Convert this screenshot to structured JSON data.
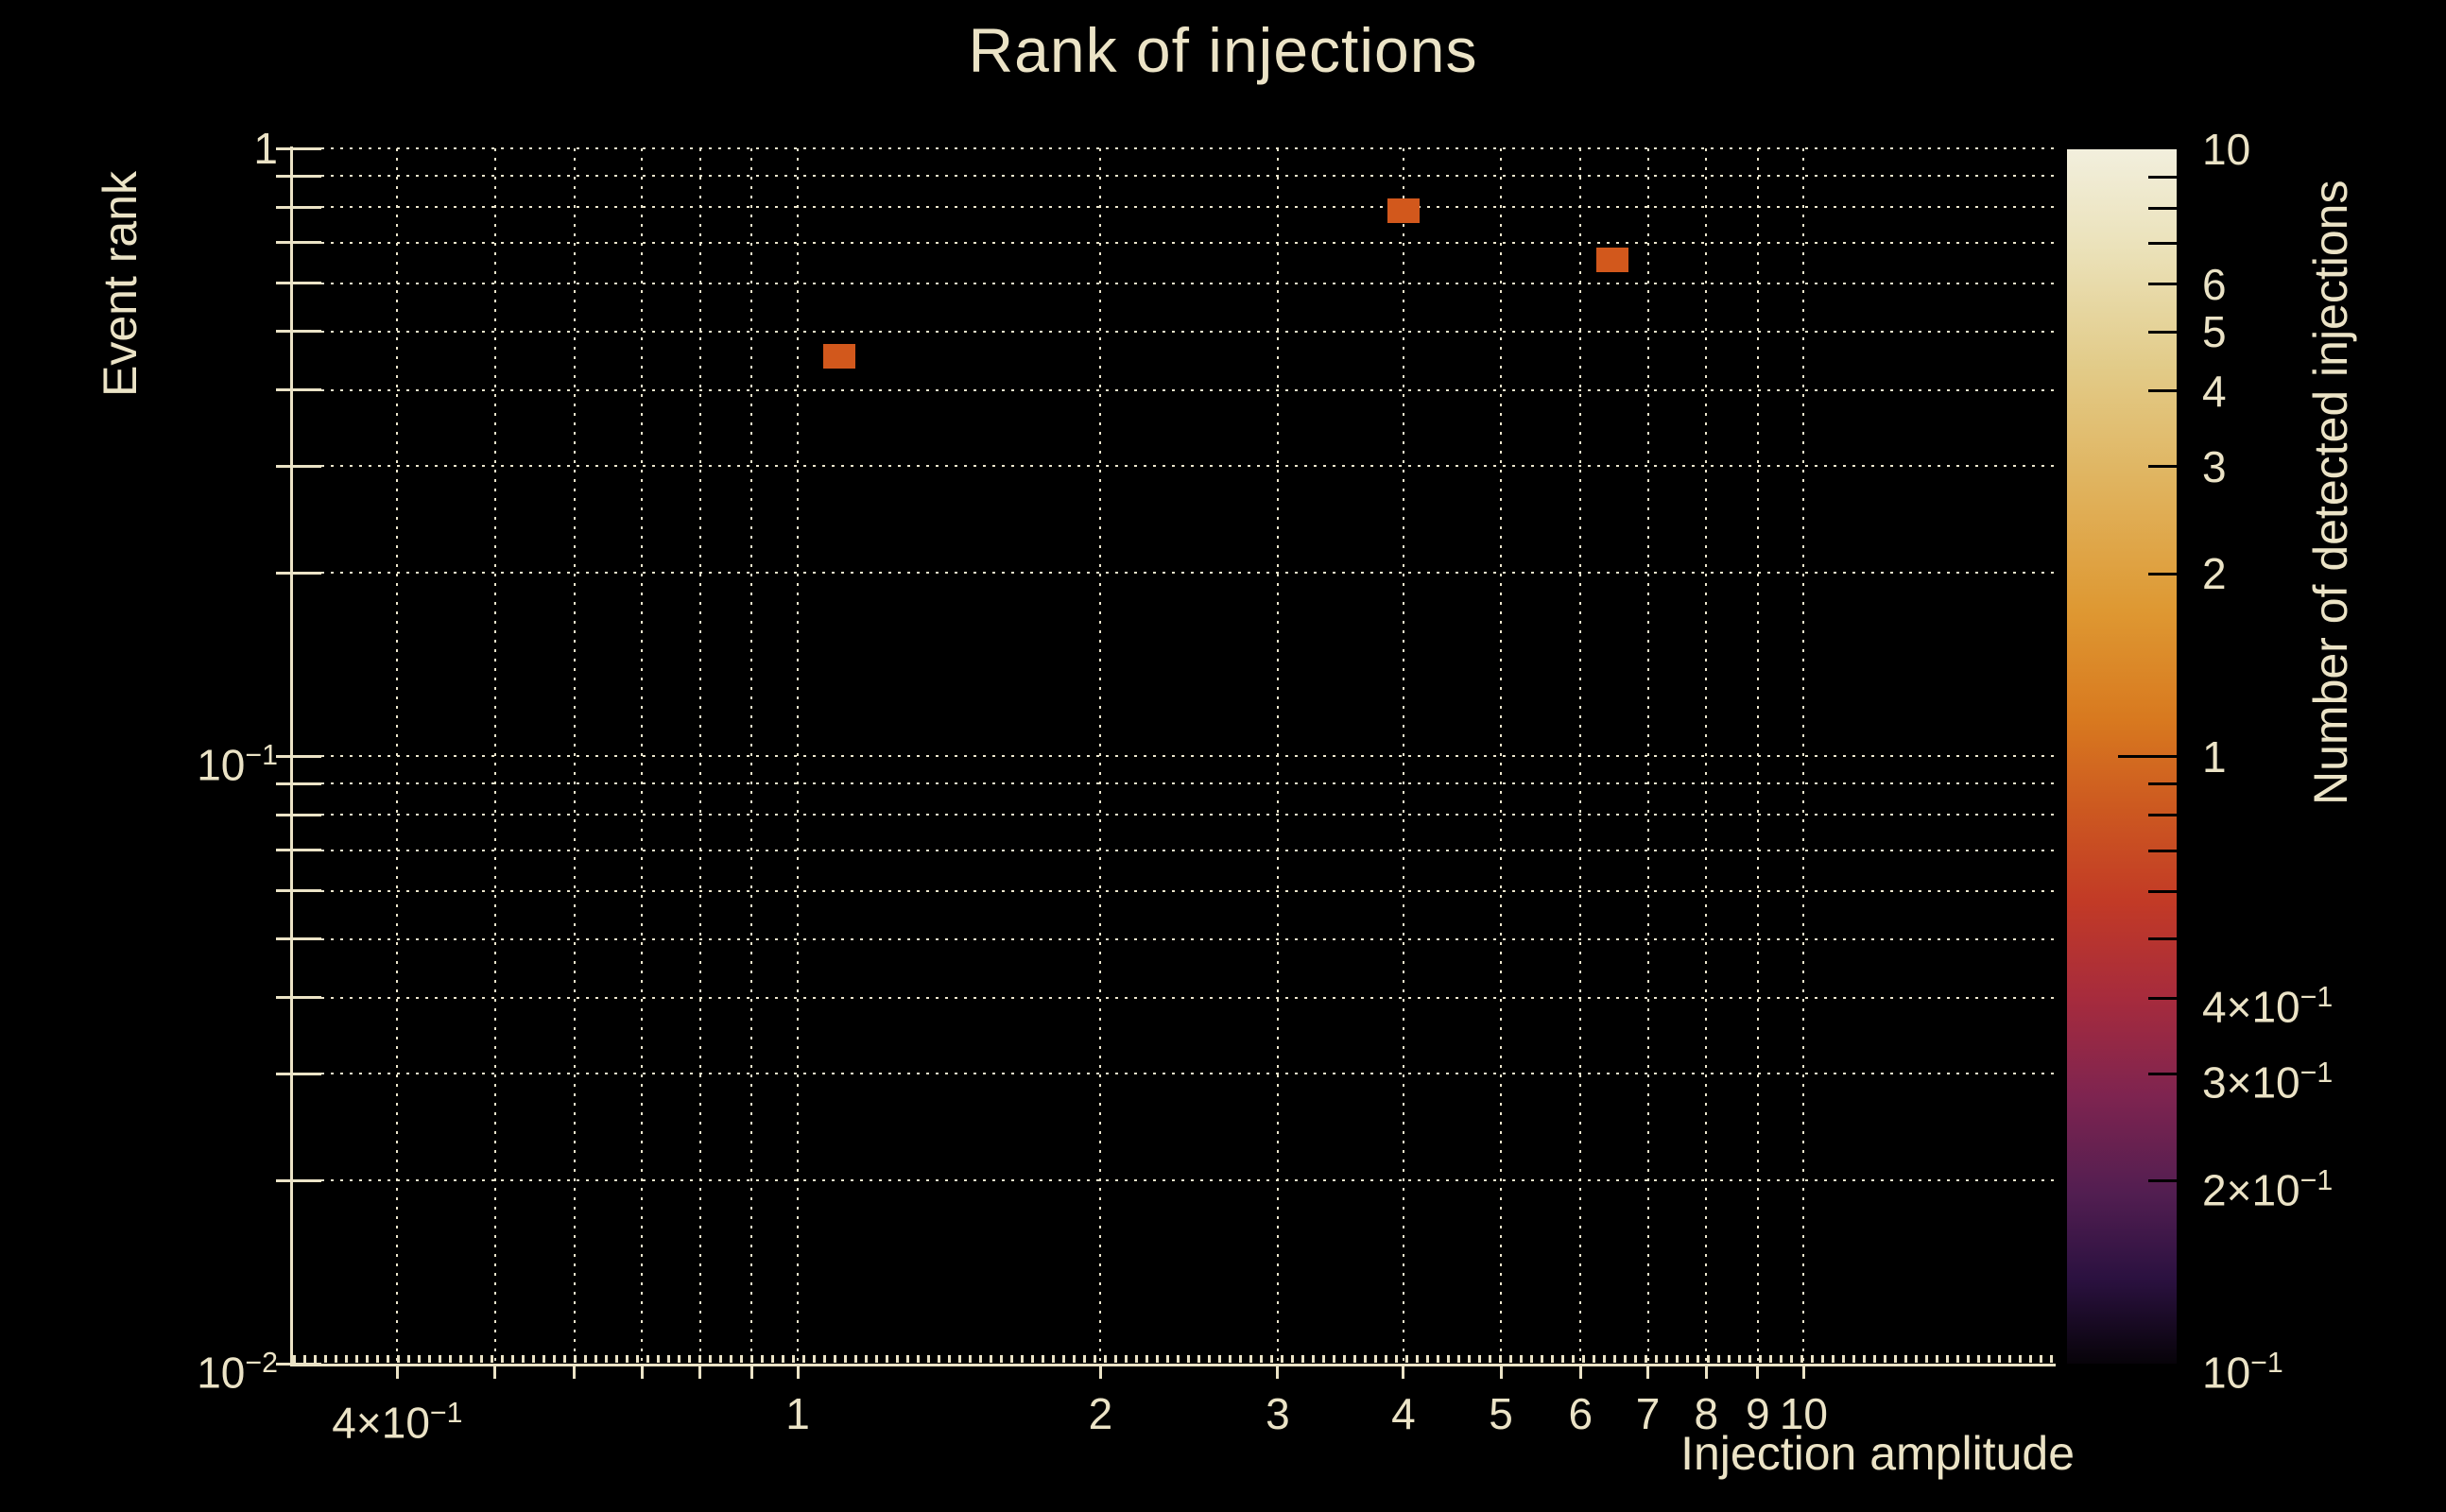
{
  "chart_data": {
    "type": "heatmap",
    "title": "Rank of injections",
    "xlabel": "Injection amplitude",
    "ylabel": "Event rank",
    "xscale": "log",
    "yscale": "log",
    "xlim": [
      0.315,
      17.8
    ],
    "ylim": [
      0.01,
      1.0
    ],
    "grid": "dotted",
    "background": "#000000",
    "foreground": "#ebe3c6",
    "grid_color": "#ece5cc",
    "x_ticks": [
      {
        "v": 0.4,
        "label": "4×10^−1"
      },
      {
        "v": 0.5
      },
      {
        "v": 0.6
      },
      {
        "v": 0.7
      },
      {
        "v": 0.8
      },
      {
        "v": 0.9
      },
      {
        "v": 1,
        "label": "1"
      },
      {
        "v": 2,
        "label": "2"
      },
      {
        "v": 3,
        "label": "3"
      },
      {
        "v": 4,
        "label": "4"
      },
      {
        "v": 5,
        "label": "5"
      },
      {
        "v": 6,
        "label": "6"
      },
      {
        "v": 7,
        "label": "7"
      },
      {
        "v": 8,
        "label": "8"
      },
      {
        "v": 9,
        "label": "9"
      },
      {
        "v": 10,
        "label": "10"
      }
    ],
    "y_ticks": [
      {
        "v": 1,
        "label": "1"
      },
      {
        "v": 0.9
      },
      {
        "v": 0.8
      },
      {
        "v": 0.7
      },
      {
        "v": 0.6
      },
      {
        "v": 0.5
      },
      {
        "v": 0.4
      },
      {
        "v": 0.3
      },
      {
        "v": 0.2
      },
      {
        "v": 0.1,
        "label": "10^−1"
      },
      {
        "v": 0.09
      },
      {
        "v": 0.08
      },
      {
        "v": 0.07
      },
      {
        "v": 0.06
      },
      {
        "v": 0.05
      },
      {
        "v": 0.04
      },
      {
        "v": 0.03
      },
      {
        "v": 0.02
      },
      {
        "v": 0.01,
        "label": "10^−2",
        "grid": false
      }
    ],
    "points": [
      {
        "x": 1.1,
        "y": 0.455,
        "count": 1,
        "color": "#d2581c"
      },
      {
        "x": 4.0,
        "y": 0.79,
        "count": 1,
        "color": "#d2581c"
      },
      {
        "x": 6.45,
        "y": 0.655,
        "count": 1,
        "color": "#d2581c"
      }
    ],
    "colorbar": {
      "label": "Number of detected injections",
      "scale": "log",
      "vmin": 0.1,
      "vmax": 10,
      "ticks": [
        {
          "v": 10,
          "label": "10"
        },
        {
          "v": 9
        },
        {
          "v": 8
        },
        {
          "v": 7
        },
        {
          "v": 6,
          "label": "6"
        },
        {
          "v": 5,
          "label": "5"
        },
        {
          "v": 4,
          "label": "4"
        },
        {
          "v": 3,
          "label": "3"
        },
        {
          "v": 2,
          "label": "2"
        },
        {
          "v": 1,
          "label": "1",
          "major": true
        },
        {
          "v": 0.9
        },
        {
          "v": 0.8
        },
        {
          "v": 0.7
        },
        {
          "v": 0.6
        },
        {
          "v": 0.5
        },
        {
          "v": 0.4,
          "label": "4×10^−1"
        },
        {
          "v": 0.3,
          "label": "3×10^−1"
        },
        {
          "v": 0.2,
          "label": "2×10^−1"
        },
        {
          "v": 0.1,
          "label": "10^−1"
        }
      ],
      "gradient_top_to_bottom": [
        {
          "pos": 0,
          "color": "#f2efdd"
        },
        {
          "pos": 8,
          "color": "#ebe2ba"
        },
        {
          "pos": 18,
          "color": "#e2cb88"
        },
        {
          "pos": 28,
          "color": "#e0b25c"
        },
        {
          "pos": 38,
          "color": "#de9832"
        },
        {
          "pos": 47,
          "color": "#d8791f"
        },
        {
          "pos": 54,
          "color": "#cd5a20"
        },
        {
          "pos": 62,
          "color": "#c23a26"
        },
        {
          "pos": 70,
          "color": "#a62b3d"
        },
        {
          "pos": 78,
          "color": "#7e2450"
        },
        {
          "pos": 86,
          "color": "#521e51"
        },
        {
          "pos": 93,
          "color": "#2b1140"
        },
        {
          "pos": 100,
          "color": "#070309"
        }
      ]
    }
  }
}
